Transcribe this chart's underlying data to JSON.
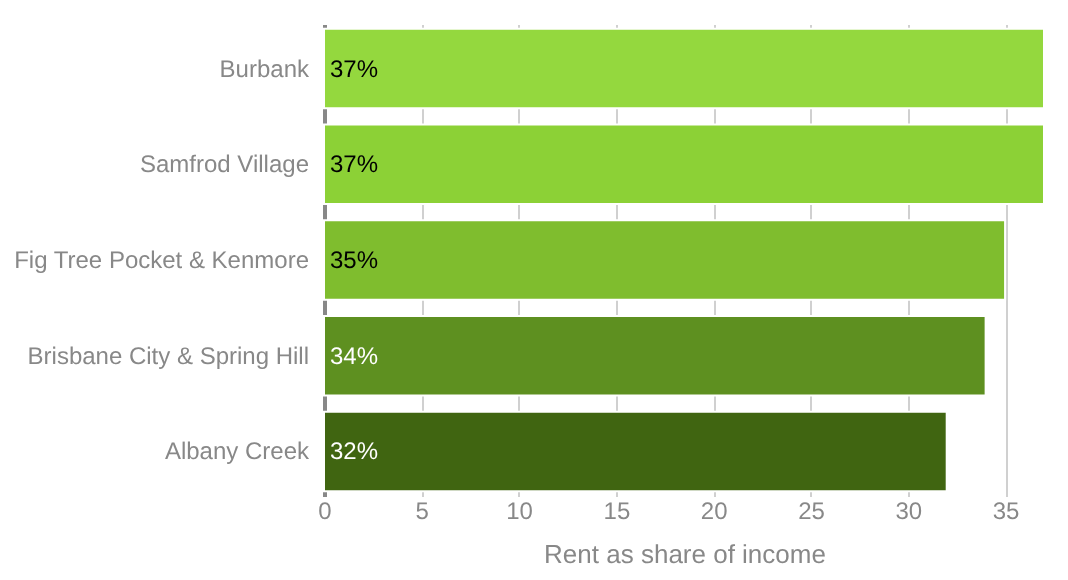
{
  "chart_data": {
    "type": "bar",
    "orientation": "horizontal",
    "xlabel": "Rent as share of income",
    "categories": [
      "Burbank",
      "Samfrod Village",
      "Fig Tree Pocket & Kenmore",
      "Brisbane City & Spring Hill",
      "Albany Creek"
    ],
    "values": [
      37,
      37,
      35,
      34,
      32
    ],
    "colors": [
      "#94d83e",
      "#8cd136",
      "#7fbd2e",
      "#5e9020",
      "#406511"
    ],
    "value_labels": [
      "37%",
      "37%",
      "35%",
      "34%",
      "32%"
    ],
    "xlim": [
      0,
      37
    ],
    "xticks": [
      0,
      5,
      10,
      15,
      20,
      25,
      30,
      35
    ],
    "grid": "x"
  }
}
